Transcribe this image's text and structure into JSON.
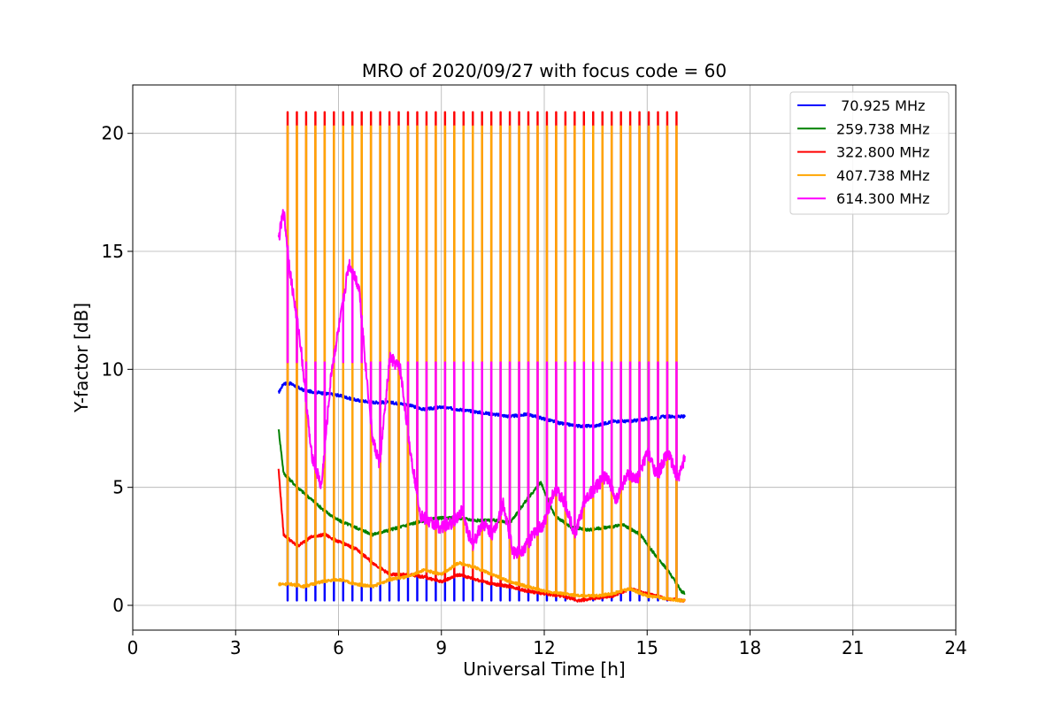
{
  "chart_data": {
    "type": "line",
    "title": "MRO of 2020/09/27 with focus code = 60",
    "xlabel": "Universal Time [h]",
    "ylabel": "Y-factor [dB]",
    "xlim": [
      0,
      24
    ],
    "ylim": [
      -1.05,
      22.05
    ],
    "x_ticks": [
      0,
      3,
      6,
      9,
      12,
      15,
      18,
      21,
      24
    ],
    "x_tick_labels": [
      "0",
      "3",
      "6",
      "9",
      "12",
      "15",
      "18",
      "21",
      "24"
    ],
    "y_ticks": [
      0,
      5,
      10,
      15,
      20
    ],
    "y_tick_labels": [
      "0",
      "5",
      "10",
      "15",
      "20"
    ],
    "grid": true,
    "legend_position": "top-right",
    "series": [
      {
        "name": "70.925 MHz",
        "legend_label": " 70.925 MHz",
        "color": "#0000ff",
        "x": [
          4.25,
          4.4,
          4.6,
          5.0,
          5.5,
          6.0,
          6.5,
          7.0,
          7.5,
          8.0,
          8.5,
          9.0,
          9.5,
          10.0,
          10.5,
          11.0,
          11.5,
          12.0,
          12.5,
          13.0,
          13.5,
          14.0,
          14.5,
          15.0,
          15.5,
          16.0,
          16.1
        ],
        "values": [
          9.0,
          9.4,
          9.4,
          9.1,
          9.0,
          8.9,
          8.7,
          8.6,
          8.6,
          8.5,
          8.3,
          8.4,
          8.3,
          8.2,
          8.1,
          8.0,
          8.1,
          7.9,
          7.7,
          7.6,
          7.6,
          7.8,
          7.8,
          7.9,
          8.0,
          8.0,
          8.0
        ],
        "dips_to": 0.2
      },
      {
        "name": "259.738 MHz",
        "legend_label": "259.738 MHz",
        "color": "#008000",
        "x": [
          4.25,
          4.4,
          4.8,
          5.2,
          5.6,
          6.0,
          6.5,
          7.0,
          7.5,
          8.0,
          8.5,
          9.0,
          9.5,
          10.0,
          10.5,
          11.0,
          11.5,
          11.9,
          12.3,
          12.8,
          13.3,
          13.8,
          14.3,
          14.8,
          15.2,
          15.6,
          16.0,
          16.1
        ],
        "values": [
          7.5,
          5.6,
          5.0,
          4.5,
          4.0,
          3.6,
          3.3,
          3.0,
          3.2,
          3.4,
          3.6,
          3.7,
          3.7,
          3.6,
          3.6,
          3.5,
          4.5,
          5.2,
          3.8,
          3.3,
          3.2,
          3.3,
          3.4,
          3.0,
          2.2,
          1.5,
          0.6,
          0.5
        ]
      },
      {
        "name": "322.800 MHz",
        "legend_label": "322.800 MHz",
        "color": "#ff0000",
        "x": [
          4.25,
          4.4,
          4.8,
          5.2,
          5.6,
          6.0,
          6.5,
          7.0,
          7.5,
          8.0,
          8.5,
          9.0,
          9.5,
          10.0,
          10.5,
          11.0,
          11.5,
          12.0,
          12.5,
          13.0,
          13.5,
          14.0,
          14.5,
          15.0,
          15.5,
          16.0,
          16.1
        ],
        "values": [
          5.8,
          3.0,
          2.5,
          2.9,
          3.0,
          2.7,
          2.4,
          1.8,
          1.3,
          1.3,
          1.2,
          1.0,
          1.3,
          1.1,
          0.9,
          0.8,
          0.6,
          0.5,
          0.4,
          0.2,
          0.3,
          0.4,
          0.7,
          0.5,
          0.3,
          0.2,
          0.2
        ],
        "peaks_to": 20.9
      },
      {
        "name": "407.738 MHz",
        "legend_label": "407.738 MHz",
        "color": "#ffa500",
        "x": [
          4.25,
          4.6,
          5.0,
          5.5,
          6.0,
          6.5,
          7.0,
          7.5,
          8.0,
          8.5,
          9.0,
          9.5,
          10.0,
          10.5,
          11.0,
          11.5,
          12.0,
          12.5,
          13.0,
          13.5,
          14.0,
          14.5,
          15.0,
          15.5,
          16.0,
          16.1
        ],
        "values": [
          0.9,
          0.9,
          0.8,
          1.0,
          1.1,
          0.9,
          0.8,
          1.1,
          1.2,
          1.5,
          1.3,
          1.8,
          1.6,
          1.3,
          1.0,
          0.8,
          0.6,
          0.5,
          0.4,
          0.4,
          0.5,
          0.7,
          0.4,
          0.3,
          0.2,
          0.2
        ],
        "peaks_to": 20.3
      },
      {
        "name": "614.300 MHz",
        "legend_label": "614.300 MHz",
        "color": "#ff00ff",
        "x": [
          4.25,
          4.4,
          4.6,
          4.9,
          5.2,
          5.5,
          5.8,
          6.1,
          6.3,
          6.6,
          6.8,
          7.0,
          7.2,
          7.5,
          7.8,
          8.1,
          8.4,
          8.7,
          9.0,
          9.3,
          9.6,
          9.9,
          10.2,
          10.5,
          10.8,
          11.1,
          11.4,
          11.7,
          12.0,
          12.3,
          12.6,
          12.9,
          13.2,
          13.5,
          13.8,
          14.1,
          14.4,
          14.7,
          15.0,
          15.3,
          15.6,
          15.9,
          16.1
        ],
        "values": [
          15.5,
          16.7,
          14.0,
          11.0,
          6.5,
          5.0,
          10.0,
          12.5,
          14.5,
          13.5,
          10.0,
          7.0,
          6.0,
          10.5,
          10.0,
          6.5,
          3.8,
          3.5,
          3.3,
          3.5,
          4.0,
          2.5,
          3.5,
          3.0,
          4.3,
          2.2,
          2.4,
          3.0,
          3.5,
          5.0,
          4.3,
          3.0,
          4.5,
          5.0,
          5.5,
          4.5,
          5.5,
          5.3,
          6.5,
          5.5,
          6.5,
          5.3,
          6.3
        ],
        "peaks_to": 10.3
      }
    ]
  }
}
